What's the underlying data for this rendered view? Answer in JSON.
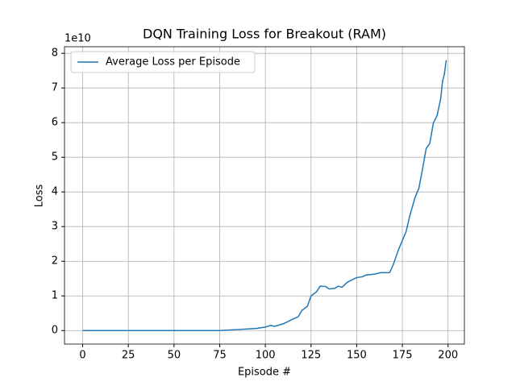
{
  "chart_data": {
    "type": "line",
    "title": "DQN Training Loss for Breakout (RAM)",
    "x_label": "Episode #",
    "y_label": "Loss",
    "y_offset_label": "1e10",
    "x": [
      0,
      25,
      50,
      75,
      85,
      95,
      100,
      103,
      105,
      110,
      115,
      118,
      120,
      123,
      125,
      128,
      130,
      133,
      135,
      138,
      140,
      142,
      145,
      150,
      153,
      155,
      160,
      163,
      165,
      168,
      170,
      173,
      175,
      177,
      179,
      182,
      184,
      186,
      188,
      190,
      192,
      194,
      196,
      197,
      198,
      199
    ],
    "series": [
      {
        "name": "Average Loss per Episode",
        "color": "#1f77b4",
        "values": [
          0,
          0,
          0,
          0,
          0.03,
          0.06,
          0.1,
          0.15,
          0.12,
          0.2,
          0.33,
          0.4,
          0.58,
          0.7,
          1.0,
          1.12,
          1.28,
          1.27,
          1.2,
          1.22,
          1.28,
          1.25,
          1.4,
          1.53,
          1.55,
          1.6,
          1.63,
          1.67,
          1.67,
          1.67,
          1.9,
          2.35,
          2.6,
          2.85,
          3.3,
          3.85,
          4.1,
          4.65,
          5.25,
          5.4,
          6.0,
          6.2,
          6.7,
          7.2,
          7.4,
          7.8
        ]
      }
    ],
    "xlim": [
      -9.95,
      208.95
    ],
    "xticks": [
      0,
      25,
      50,
      75,
      100,
      125,
      150,
      175,
      200
    ],
    "ylim": [
      -0.39,
      8.19
    ],
    "yticks": [
      0,
      1,
      2,
      3,
      4,
      5,
      6,
      7,
      8
    ],
    "grid": true,
    "legend": "upper-left"
  }
}
